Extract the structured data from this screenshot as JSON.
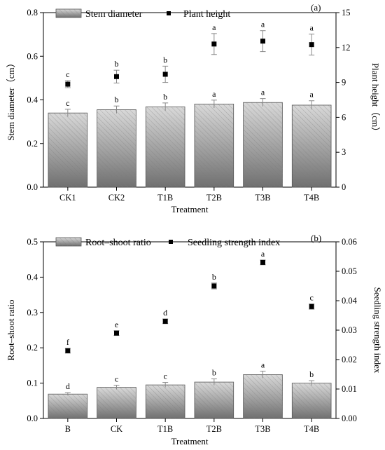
{
  "colors": {
    "bar_light": "#d9d9d9",
    "bar_dark": "#707070",
    "point": "#000000"
  },
  "chart_data": [
    {
      "type": "bar",
      "panel_label": "(a)",
      "categories": [
        "CK1",
        "CK2",
        "T1B",
        "T2B",
        "T3B",
        "T4B"
      ],
      "xlabel": "Treatment",
      "ylabel": "Stem diameter（cm）",
      "y2label": "Plant height（cm）",
      "ylim": [
        0,
        0.8
      ],
      "yticks": [
        0.0,
        0.2,
        0.4,
        0.6,
        0.8
      ],
      "ytick_labels": [
        "0.0",
        "0.2",
        "0.4",
        "0.6",
        "0.8"
      ],
      "y2lim": [
        0,
        15
      ],
      "y2ticks": [
        0,
        3,
        6,
        9,
        12,
        15
      ],
      "y2tick_labels": [
        "0",
        "3",
        "6",
        "9",
        "12",
        "15"
      ],
      "legend_position": "top-left",
      "series": [
        {
          "name": "Stem diameter",
          "kind": "bar",
          "axis": "left",
          "values": [
            0.34,
            0.355,
            0.368,
            0.381,
            0.388,
            0.376
          ],
          "errors": [
            0.017,
            0.017,
            0.018,
            0.018,
            0.018,
            0.02
          ],
          "letters": [
            "c",
            "b",
            "b",
            "a",
            "a",
            "a"
          ]
        },
        {
          "name": "Plant height",
          "kind": "point",
          "axis": "right",
          "values": [
            8.85,
            9.5,
            9.7,
            12.3,
            12.55,
            12.25
          ],
          "errors": [
            0.3,
            0.55,
            0.7,
            0.9,
            0.9,
            0.9
          ],
          "letters": [
            "c",
            "b",
            "b",
            "a",
            "a",
            "a"
          ]
        }
      ]
    },
    {
      "type": "bar",
      "panel_label": "(b)",
      "categories": [
        "B",
        "CK",
        "T1B",
        "T2B",
        "T3B",
        "T4B"
      ],
      "xlabel": "Treatment",
      "ylabel": "Root–shoot ratio",
      "y2label": "Seedling strength index",
      "ylim": [
        0,
        0.5
      ],
      "yticks": [
        0.0,
        0.1,
        0.2,
        0.3,
        0.4,
        0.5
      ],
      "ytick_labels": [
        "0.0",
        "0.1",
        "0.2",
        "0.3",
        "0.4",
        "0.5"
      ],
      "y2lim": [
        0,
        0.06
      ],
      "y2ticks": [
        0,
        0.01,
        0.02,
        0.03,
        0.04,
        0.05,
        0.06
      ],
      "y2tick_labels": [
        "0.00",
        "0.01",
        "0.02",
        "0.03",
        "0.04",
        "0.05",
        "0.06"
      ],
      "legend_position": "top-left",
      "series": [
        {
          "name": "Root–shoot ratio",
          "kind": "bar",
          "axis": "left",
          "values": [
            0.069,
            0.088,
            0.095,
            0.103,
            0.124,
            0.1
          ],
          "errors": [
            0.004,
            0.006,
            0.007,
            0.009,
            0.01,
            0.007
          ],
          "letters": [
            "d",
            "c",
            "c",
            "b",
            "a",
            "b"
          ]
        },
        {
          "name": "Seedling strength index",
          "kind": "point",
          "axis": "right",
          "values": [
            0.023,
            0.029,
            0.033,
            0.045,
            0.053,
            0.038
          ],
          "errors": [
            0.0008,
            0.0008,
            0.0008,
            0.001,
            0.0008,
            0.0009
          ],
          "letters": [
            "f",
            "e",
            "d",
            "b",
            "a",
            "c"
          ]
        }
      ]
    }
  ]
}
